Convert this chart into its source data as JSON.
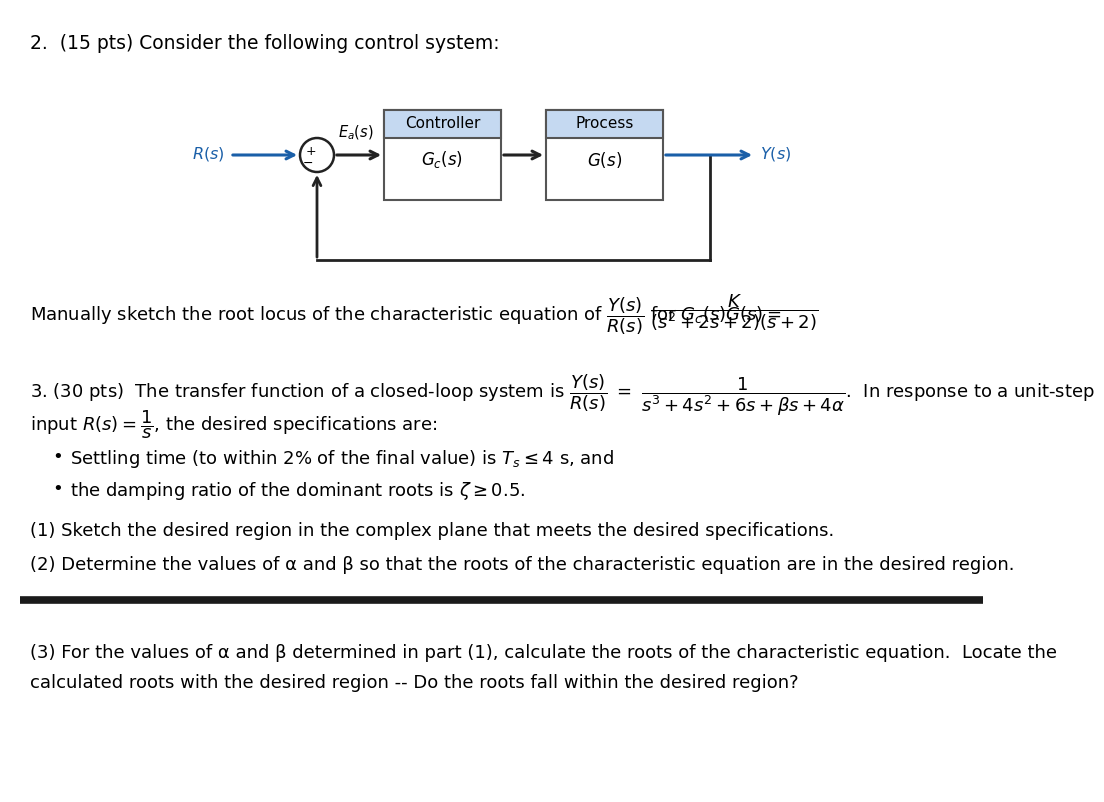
{
  "bg_color": "#ffffff",
  "title": "2.  (15 pts) Consider the following control system:",
  "p2_text1": "Manually sketch the root locus of the characteristic equation of ",
  "p2_frac": "\\frac{Y(s)}{R(s)}",
  "p2_text2": " for $G_c(s)G(s)=$",
  "p2_frac2": "\\dfrac{K}{(s^2+2s+2)(s+2)}",
  "p3_text1": "3. (30 pts)  The transfer function of a closed-loop system is ",
  "p3_frac1": "\\frac{Y(s)}{R(s)}",
  "p3_eq": " $=$ ",
  "p3_frac2": "\\dfrac{1}{s^3+4s^2+6s+\\beta s+4\\alpha}",
  "p3_text2": ".  In response to a unit-step",
  "p3_line2": "input $R(s) = \\frac{1}{s}$, the desired specifications are:",
  "bullet1": "Settling time (to within 2% of the final value) is $T_s \\leq 4$ s, and",
  "bullet2": "the damping ratio of the dominant roots is $\\zeta \\geq 0.5$.",
  "part1": "(1) Sketch the desired region in the complex plane that meets the desired specifications.",
  "part2": "(2) Determine the values of α and β so that the roots of the characteristic equation are in the desired region.",
  "part3a": "(3) For the values of α and β determined in part (1), calculate the roots of the characteristic equation.  Locate the",
  "part3b": "calculated roots with the desired region -- Do the roots fall within the desired region?",
  "diagram": {
    "R_color": "#1a5fa8",
    "Y_color": "#1a5fa8",
    "line_color": "#222222",
    "box_header_color": "#c5d9f1",
    "box_border_color": "#555555",
    "ctrl_header": "Controller",
    "ctrl_body": "$G_c(s)$",
    "proc_header": "Process",
    "proc_body": "$G(s)$",
    "R_label": "$R(s)$",
    "Y_label": "$Y(s)$",
    "Ea_label": "$E_a(s)$",
    "plus": "+",
    "minus": "−"
  }
}
